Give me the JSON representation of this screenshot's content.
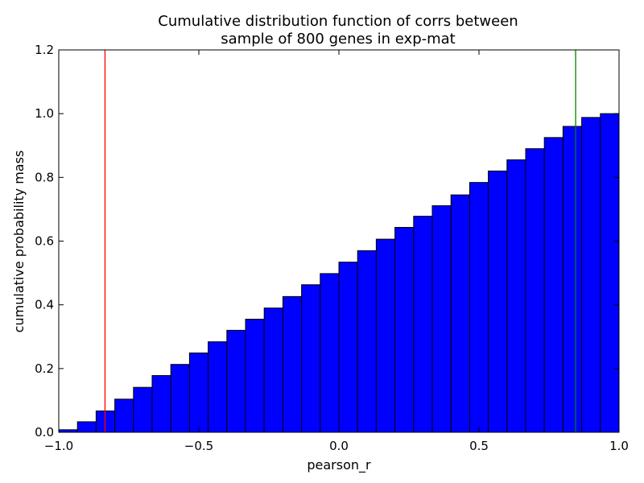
{
  "chart_data": {
    "type": "bar",
    "title_lines": [
      "Cumulative distribution function of corrs between",
      "sample of 800 genes in exp-mat"
    ],
    "xlabel": "pearson_r",
    "ylabel": "cumulative probability mass",
    "xlim": [
      -1.0,
      1.0
    ],
    "ylim": [
      0.0,
      1.2
    ],
    "x_ticks": [
      -1.0,
      -0.5,
      0.0,
      0.5,
      1.0
    ],
    "x_tick_labels": [
      "−1.0",
      "−0.5",
      "0.0",
      "0.5",
      "1.0"
    ],
    "y_ticks": [
      0.0,
      0.2,
      0.4,
      0.6,
      0.8,
      1.0,
      1.2
    ],
    "y_tick_labels": [
      "0.0",
      "0.2",
      "0.4",
      "0.6",
      "0.8",
      "1.0",
      "1.2"
    ],
    "bin_edges": [
      -1.0,
      -0.9333,
      -0.8667,
      -0.8,
      -0.7333,
      -0.6667,
      -0.6,
      -0.5333,
      -0.4667,
      -0.4,
      -0.3333,
      -0.2667,
      -0.2,
      -0.1333,
      -0.0667,
      0.0,
      0.0667,
      0.1333,
      0.2,
      0.2667,
      0.3333,
      0.4,
      0.4667,
      0.5333,
      0.6,
      0.6667,
      0.7333,
      0.8,
      0.8667,
      0.9333,
      1.0
    ],
    "values": [
      0.008,
      0.033,
      0.067,
      0.104,
      0.141,
      0.178,
      0.213,
      0.249,
      0.284,
      0.32,
      0.355,
      0.39,
      0.426,
      0.463,
      0.498,
      0.534,
      0.57,
      0.606,
      0.643,
      0.678,
      0.711,
      0.745,
      0.784,
      0.82,
      0.855,
      0.89,
      0.925,
      0.96,
      0.988,
      1.0
    ],
    "bar_color": "#0000ff",
    "vlines": [
      {
        "x": -0.835,
        "color": "#ff0000"
      },
      {
        "x": 0.845,
        "color": "#008000"
      }
    ],
    "grid": false
  }
}
